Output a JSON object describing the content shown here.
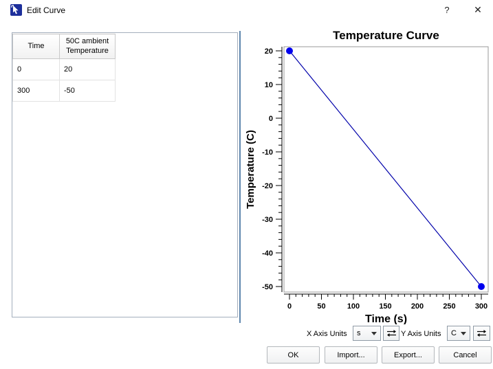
{
  "window": {
    "title": "Edit Curve",
    "help": "?",
    "close": "✕"
  },
  "table": {
    "columns": [
      "Time",
      "50C ambient Temperature"
    ],
    "rows": [
      [
        "0",
        "20"
      ],
      [
        "300",
        "-50"
      ]
    ]
  },
  "chart_data": {
    "type": "line",
    "title": "Temperature Curve",
    "xlabel": "Time (s)",
    "ylabel": "Temperature (C)",
    "x": [
      0,
      300
    ],
    "y": [
      20,
      -50
    ],
    "xlim": [
      0,
      300
    ],
    "ylim": [
      -50,
      20
    ],
    "x_major_ticks": [
      0,
      50,
      100,
      150,
      200,
      250,
      300
    ],
    "x_minor_step": 10,
    "y_major_ticks": [
      20,
      10,
      0,
      -10,
      -20,
      -30,
      -40,
      -50
    ],
    "y_minor_step": 2,
    "grid": false,
    "legend": false,
    "line_color": "#0000aa",
    "point_color": "#0000ee",
    "axis_color": "#000000",
    "plot_border_color": "#9a9a9a"
  },
  "controls": {
    "x_axis_units_label": "X Axis Units",
    "x_axis_units_value": "s",
    "y_axis_units_label": "Y Axis Units",
    "y_axis_units_value": "C"
  },
  "buttons": {
    "ok": "OK",
    "import": "Import...",
    "export": "Export...",
    "cancel": "Cancel"
  }
}
